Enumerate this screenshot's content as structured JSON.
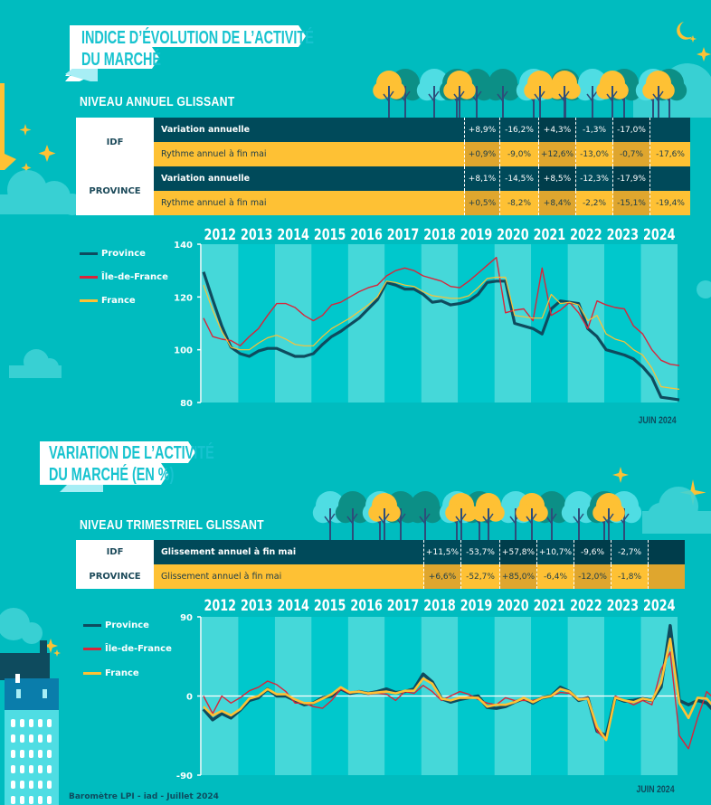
{
  "colors": {
    "background": "#00bcbf",
    "province": "#0e4b5e",
    "idf": "#d8253a",
    "france": "#fec134",
    "band_light": "#45d8d9",
    "band_dark": "#00c8cc",
    "dark_row": "#004a5a",
    "gold_row": "#fec134"
  },
  "section1": {
    "title_line1": "INDICE D’ÉVOLUTION DE L’ACTIVITÉ",
    "title_line2": "DU MARCHÉ",
    "subtitle": "NIVEAU ANNUEL GLISSANT",
    "table": {
      "regions": [
        {
          "name": "IDF",
          "rows": [
            {
              "label": "Variation annuelle",
              "values": [
                "+8,9%",
                "-16,2%",
                "+4,3%",
                "-1,3%",
                "-17,0%",
                ""
              ]
            },
            {
              "label": "Rythme annuel à fin mai",
              "values": [
                "+0,9%",
                "-9,0%",
                "+12,6%",
                "-13,0%",
                "-0,7%",
                "-17,6%"
              ]
            }
          ]
        },
        {
          "name": "PROVINCE",
          "rows": [
            {
              "label": "Variation annuelle",
              "values": [
                "+8,1%",
                "-14,5%",
                "+8,5%",
                "-12,3%",
                "-17,9%",
                ""
              ]
            },
            {
              "label": "Rythme annuel à fin mai",
              "values": [
                "+0,5%",
                "-8,2%",
                "+8,4%",
                "-2,2%",
                "-15,1%",
                "-19,4%"
              ]
            }
          ]
        }
      ]
    },
    "juin_label": "JUIN 2024"
  },
  "section2": {
    "title_line1": "VARIATION DE L’ACTIVITÉ",
    "title_line2": "DU MARCHÉ (EN %)",
    "subtitle": "NIVEAU TRIMESTRIEL GLISSANT",
    "table": {
      "regions": [
        {
          "name": "IDF",
          "label": "Glissement annuel à fin mai",
          "values": [
            "+11,5%",
            "-53,7%",
            "+57,8%",
            "+10,7%",
            "-9,6%",
            "-2,7%",
            ""
          ]
        },
        {
          "name": "PROVINCE",
          "label": "Glissement annuel à fin mai",
          "values": [
            "+6,6%",
            "-52,7%",
            "+85,0%",
            "-6,4%",
            "-12,0%",
            "-1,8%",
            ""
          ]
        }
      ]
    },
    "juin_label": "JUIN 2024"
  },
  "footer": "Baromètre LPI - iad - Juillet 2024",
  "chart_data": [
    {
      "type": "line",
      "title": "Indice d’évolution de l’activité du marché — Niveau annuel glissant",
      "categories": [
        "2012",
        "2013",
        "2014",
        "2015",
        "2016",
        "2017",
        "2018",
        "2019",
        "2020",
        "2021",
        "2022",
        "2023",
        "2024"
      ],
      "x_unit": "quarter",
      "ylim": [
        80,
        140
      ],
      "yticks": [
        80,
        100,
        120,
        140
      ],
      "grid": false,
      "legend": "left",
      "annotation": "JUIN 2024",
      "series": [
        {
          "name": "Province",
          "key": "province",
          "values": [
            129.5,
            119,
            109,
            101,
            98.5,
            97.5,
            99.5,
            100.5,
            100.5,
            99,
            97.5,
            97.5,
            98.5,
            102,
            105,
            107,
            109.5,
            112,
            115.5,
            119,
            125.5,
            124.5,
            123,
            123,
            121,
            118,
            118.5,
            117,
            117.5,
            118.5,
            121,
            125.5,
            126,
            126,
            110,
            109,
            108,
            106,
            115.5,
            118.5,
            118,
            117.5,
            108,
            105,
            100,
            99,
            98,
            96.5,
            93.5,
            89.5,
            82,
            81.5,
            81
          ]
        },
        {
          "name": "Île-de-France",
          "key": "idf",
          "values": [
            112,
            105,
            104,
            103.5,
            101.5,
            105,
            108,
            113,
            117.5,
            117.5,
            116,
            113,
            111,
            113,
            117,
            118,
            120,
            122,
            123.5,
            124.5,
            128,
            130,
            131,
            130,
            128,
            127,
            126,
            124,
            123.5,
            126,
            129,
            132,
            135,
            114,
            115,
            115.5,
            111,
            131,
            113,
            115,
            118,
            114,
            108,
            118.5,
            117,
            116,
            115.5,
            109,
            106,
            100,
            96,
            94.5,
            94
          ]
        },
        {
          "name": "France",
          "key": "france",
          "values": [
            124.5,
            115,
            107,
            101,
            100,
            100,
            102.5,
            104.5,
            105.5,
            104,
            102,
            101.5,
            101.5,
            105,
            108,
            110,
            112,
            114.5,
            117,
            120,
            126,
            125.5,
            124.5,
            124,
            122,
            120.5,
            120,
            119.5,
            119.5,
            120.5,
            123.5,
            127,
            127.5,
            127.5,
            113,
            112.5,
            112,
            112,
            121,
            117.5,
            118,
            117,
            111,
            113,
            106,
            104,
            103,
            100,
            98,
            93,
            86,
            85.5,
            85
          ]
        }
      ]
    },
    {
      "type": "line",
      "title": "Variation de l’activité du marché (en %) — Niveau trimestriel glissant",
      "categories": [
        "2012",
        "2013",
        "2014",
        "2015",
        "2016",
        "2017",
        "2018",
        "2019",
        "2020",
        "2021",
        "2022",
        "2023",
        "2024"
      ],
      "x_unit": "quarter",
      "ylim": [
        -90,
        90
      ],
      "yticks": [
        -90,
        0,
        90
      ],
      "grid": false,
      "legend": "left",
      "annotation": "JUIN 2024",
      "series": [
        {
          "name": "Province",
          "key": "province",
          "values": [
            -15,
            -27,
            -20,
            -25,
            -16,
            -5,
            -2,
            8,
            0,
            0,
            -5,
            -10,
            -8,
            -2,
            0,
            8,
            3,
            5,
            3,
            5,
            8,
            4,
            5,
            8,
            25,
            16,
            -3,
            -7,
            -4,
            -2,
            0,
            -13,
            -14,
            -12,
            -7,
            -3,
            -8,
            -2,
            0,
            10,
            5,
            -5,
            -2,
            -40,
            -45,
            -2,
            -6,
            -5,
            -3,
            -5,
            10,
            80,
            -5,
            -10,
            -5,
            -8,
            -20,
            -15,
            -30,
            -25,
            -5,
            10,
            -5,
            -13,
            -10,
            -15,
            -20,
            -22,
            -15,
            -2
          ]
        },
        {
          "name": "Île-de-France",
          "key": "idf",
          "values": [
            0,
            -20,
            0,
            -8,
            -2,
            6,
            10,
            17,
            13,
            5,
            -8,
            -8,
            -12,
            -14,
            -5,
            8,
            3,
            6,
            2,
            3,
            2,
            -5,
            5,
            3,
            12,
            5,
            -5,
            0,
            5,
            2,
            -4,
            -8,
            -10,
            -2,
            -5,
            -5,
            -5,
            -2,
            0,
            4,
            3,
            -3,
            -2,
            -40,
            -50,
            0,
            -5,
            -10,
            -5,
            -10,
            30,
            50,
            -45,
            -60,
            -25,
            5,
            -5,
            -25,
            -40,
            70,
            25,
            -10,
            -15,
            -5,
            -5,
            -8,
            -15,
            -20,
            -15,
            -2
          ]
        },
        {
          "name": "France",
          "key": "france",
          "values": [
            -12,
            -22,
            -17,
            -22,
            -15,
            -3,
            0,
            8,
            2,
            2,
            -4,
            -8,
            -8,
            -3,
            2,
            10,
            4,
            5,
            3,
            4,
            5,
            3,
            6,
            6,
            20,
            14,
            -3,
            -5,
            -2,
            -2,
            -2,
            -12,
            -10,
            -10,
            -7,
            -2,
            -7,
            -2,
            0,
            8,
            5,
            -4,
            -3,
            -35,
            -50,
            -2,
            -5,
            -7,
            -3,
            -5,
            15,
            65,
            -8,
            -25,
            -2,
            -3,
            -15,
            -18,
            -25,
            -15,
            -5,
            -2,
            -8,
            -12,
            -10,
            -14,
            -20,
            -22,
            -15,
            -2
          ]
        }
      ]
    }
  ]
}
